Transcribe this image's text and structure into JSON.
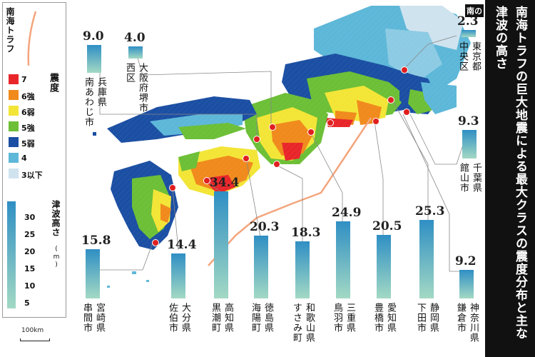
{
  "title": "南海トラフの巨大地震による最大クラスの震度分布と主な津波の高さ",
  "title_clipped_fragment": "南の",
  "legend": {
    "trough_label": "南海トラフ",
    "intensity_label": "震度",
    "intensity_levels": [
      {
        "label": "7",
        "color": "#e8262a"
      },
      {
        "label": "6強",
        "color": "#f08a1c"
      },
      {
        "label": "6弱",
        "color": "#f3e536"
      },
      {
        "label": "5強",
        "color": "#6cbf36"
      },
      {
        "label": "5弱",
        "color": "#1b4fa3"
      },
      {
        "label": "4",
        "color": "#5db7d8"
      },
      {
        "label": "3以下",
        "color": "#cfe3ef"
      }
    ],
    "tsunami_label": "津波高さ",
    "tsunami_unit": "(m)",
    "tsunami_ticks": [
      "30",
      "25",
      "20",
      "15",
      "10",
      "5"
    ],
    "scale_label": "100km"
  },
  "tsunami_heights": [
    {
      "prefecture": "兵庫県",
      "city": "南あわじ市",
      "height": 9.0
    },
    {
      "prefecture": "大阪府堺市",
      "city": "西区",
      "height": 4.0
    },
    {
      "prefecture": "東京都",
      "city": "中央区",
      "height": 2.3
    },
    {
      "prefecture": "千葉県",
      "city": "館山市",
      "height": 9.3
    },
    {
      "prefecture": "宮崎県",
      "city": "串間市",
      "height": 15.8
    },
    {
      "prefecture": "大分県",
      "city": "佐伯市",
      "height": 14.4
    },
    {
      "prefecture": "高知県",
      "city": "黒潮町",
      "height": 34.4
    },
    {
      "prefecture": "徳島県",
      "city": "海陽町",
      "height": 20.3
    },
    {
      "prefecture": "和歌山県",
      "city": "すさみ町",
      "height": 18.3
    },
    {
      "prefecture": "三重県",
      "city": "鳥羽市",
      "height": 24.9
    },
    {
      "prefecture": "愛知県",
      "city": "豊橋市",
      "height": 20.5
    },
    {
      "prefecture": "静岡県",
      "city": "下田市",
      "height": 25.3
    },
    {
      "prefecture": "神奈川県",
      "city": "鎌倉市",
      "height": 9.2
    }
  ],
  "colors": {
    "bar_top": "#2f8fc4",
    "bar_bottom": "#a3d9c4",
    "trough": "#f4a57d",
    "marker": "#e01f1f"
  }
}
